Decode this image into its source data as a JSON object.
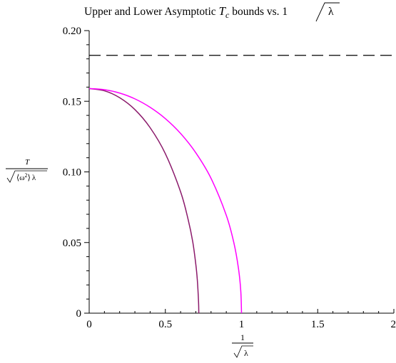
{
  "chart_data": {
    "type": "line",
    "title": {
      "prefix": "Upper and Lower Asymptotic ",
      "t_symbol": "T",
      "t_subscript": "c",
      "middle": " bounds vs. 1",
      "lambda": "λ"
    },
    "xlabel": {
      "numerator": "1",
      "denominator": "λ"
    },
    "ylabel": {
      "numerator": "T",
      "omega": "ω",
      "power": "2",
      "lambda": "λ"
    },
    "xlim": [
      0,
      2
    ],
    "ylim": [
      0,
      0.2
    ],
    "x_ticks": [
      {
        "value": 0,
        "label": "0"
      },
      {
        "value": 0.5,
        "label": "0.5"
      },
      {
        "value": 1,
        "label": "1"
      },
      {
        "value": 1.5,
        "label": "1.5"
      },
      {
        "value": 2,
        "label": "2"
      }
    ],
    "y_ticks": [
      {
        "value": 0,
        "label": "0"
      },
      {
        "value": 0.05,
        "label": "0.05"
      },
      {
        "value": 0.1,
        "label": "0.10"
      },
      {
        "value": 0.15,
        "label": "0.15"
      },
      {
        "value": 0.2,
        "label": "0.20"
      }
    ],
    "grid": false,
    "legend": "none",
    "series": [
      {
        "style": "dashed",
        "color": "#000000",
        "points": [
          [
            0,
            0.1825
          ],
          [
            2,
            0.1825
          ]
        ]
      },
      {
        "style": "solid",
        "color": "#8b1a6b",
        "points": [
          [
            0,
            0.159
          ],
          [
            0.1,
            0.1574
          ],
          [
            0.2,
            0.1525
          ],
          [
            0.3,
            0.1441
          ],
          [
            0.4,
            0.1313
          ],
          [
            0.5,
            0.1129
          ],
          [
            0.6,
            0.0859
          ],
          [
            0.65,
            0.0661
          ],
          [
            0.68,
            0.0504
          ],
          [
            0.7,
            0.0345
          ],
          [
            0.71,
            0.0233
          ],
          [
            0.718,
            0.0078
          ],
          [
            0.7195,
            0
          ]
        ]
      },
      {
        "style": "solid",
        "color": "#ff00ff",
        "points": [
          [
            0,
            0.159
          ],
          [
            0.1,
            0.1582
          ],
          [
            0.2,
            0.1558
          ],
          [
            0.3,
            0.1517
          ],
          [
            0.4,
            0.1457
          ],
          [
            0.5,
            0.1377
          ],
          [
            0.6,
            0.1272
          ],
          [
            0.7,
            0.1135
          ],
          [
            0.8,
            0.0954
          ],
          [
            0.9,
            0.0693
          ],
          [
            0.95,
            0.0497
          ],
          [
            0.98,
            0.0316
          ],
          [
            0.995,
            0.0159
          ],
          [
            1.0,
            0
          ]
        ]
      }
    ]
  }
}
